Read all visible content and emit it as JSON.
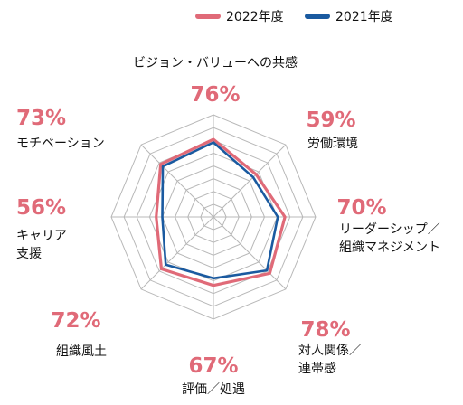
{
  "chart_data": {
    "type": "radar",
    "legend": {
      "placement": "top-right",
      "entries": [
        {
          "name": "2022年度",
          "color": "#e06a78"
        },
        {
          "name": "2021年度",
          "color": "#1a5aa0"
        }
      ]
    },
    "scale": {
      "min": 0,
      "max": 100,
      "rings": 8
    },
    "axes": [
      {
        "name": "ビジョン・バリューへの共感",
        "value_label": "76%"
      },
      {
        "name": "労働環境",
        "value_label": "59%"
      },
      {
        "name": "リーダーシップ／\n組織マネジメント",
        "value_label": "70%"
      },
      {
        "name": "対人関係／\n連帯感",
        "value_label": "78%"
      },
      {
        "name": "評価／処遇",
        "value_label": "67%"
      },
      {
        "name": "組織風土",
        "value_label": "72%"
      },
      {
        "name": "キャリア\n支援",
        "value_label": "56%"
      },
      {
        "name": "モチベーション",
        "value_label": "73%"
      }
    ],
    "series": [
      {
        "name": "2022年度",
        "color": "#e06a78",
        "values": [
          76,
          59,
          70,
          78,
          67,
          72,
          56,
          73
        ]
      },
      {
        "name": "2021年度",
        "color": "#1a5aa0",
        "values": [
          73,
          55,
          63,
          74,
          60,
          66,
          50,
          70
        ]
      }
    ],
    "grid": true
  }
}
